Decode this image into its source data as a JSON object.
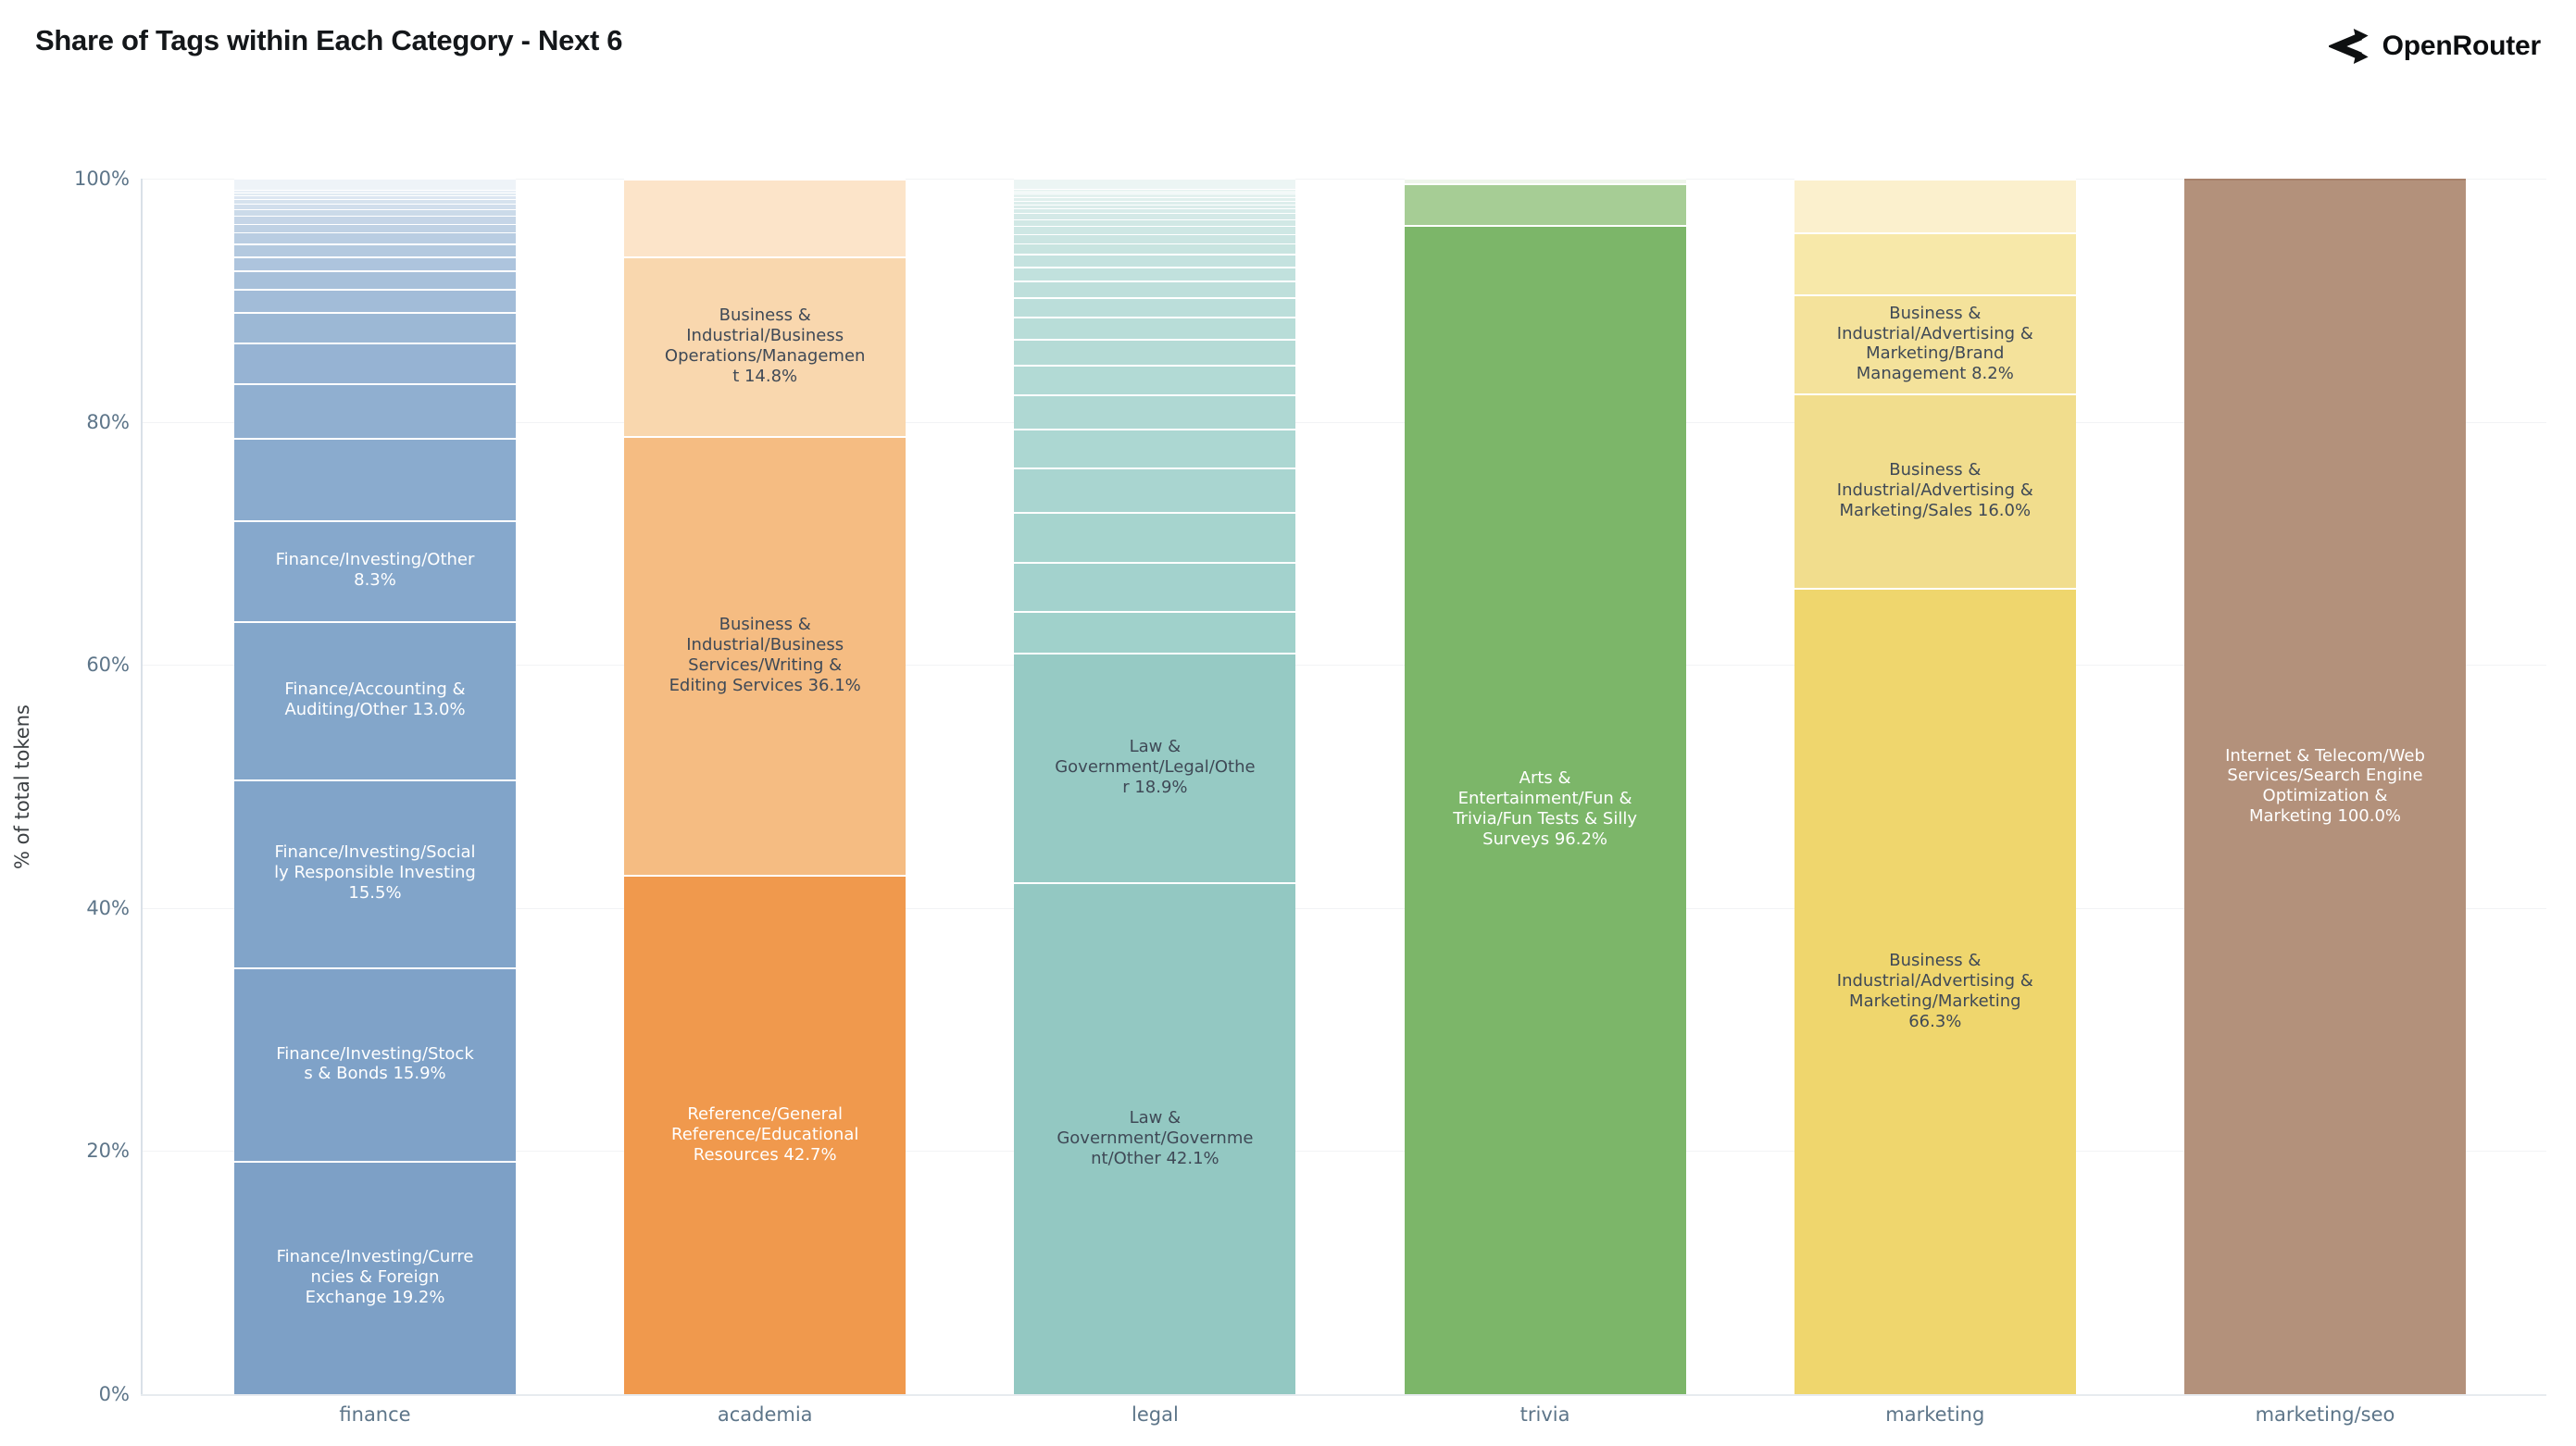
{
  "page": {
    "title": "Share of Tags within Each Category - Next 6",
    "brand": "OpenRouter"
  },
  "axis": {
    "tick_color": "#5d7589",
    "grid_color": "#f2f3f5",
    "spine_color": "#d9e0e8"
  },
  "chart_data": {
    "type": "bar",
    "stacked": true,
    "percent": true,
    "title": "Share of Tags within Each Category - Next 6",
    "xlabel": "",
    "ylabel": "% of total tokens",
    "ylim": [
      0,
      100
    ],
    "ytick_labels": [
      "0%",
      "20%",
      "40%",
      "60%",
      "80%",
      "100%"
    ],
    "grid": true,
    "legend": false,
    "categories": [
      "finance",
      "academia",
      "legal",
      "trivia",
      "marketing",
      "marketing/seo"
    ],
    "bars": [
      {
        "category": "finance",
        "segments": [
          {
            "v": 19.2,
            "color": "#7da0c6",
            "label": "Finance/Investing/Currencies & Foreign Exchange 19.2%",
            "text": "#ffffff"
          },
          {
            "v": 15.9,
            "color": "#7fa2c8",
            "label": "Finance/Investing/Stocks & Bonds 15.9%",
            "text": "#ffffff"
          },
          {
            "v": 15.5,
            "color": "#81a4c9",
            "label": "Finance/Investing/Socially Responsible Investing 15.5%",
            "text": "#ffffff"
          },
          {
            "v": 13.0,
            "color": "#83a6ca",
            "label": "Finance/Accounting & Auditing/Other 13.0%",
            "text": "#ffffff"
          },
          {
            "v": 8.3,
            "color": "#86a8cc",
            "label": "Finance/Investing/Other 8.3%",
            "text": "#ffffff"
          }
        ],
        "minor_segments_top_to_bottom": {
          "values": [
            0.9,
            0.25,
            0.25,
            0.3,
            0.35,
            0.5,
            0.5,
            0.65,
            0.75,
            0.85,
            1.1,
            1.15,
            1.5,
            1.9,
            2.5,
            3.35,
            4.5,
            6.8
          ],
          "color_top": "#eef3f8",
          "color_bottom": "#8aabce"
        }
      },
      {
        "category": "academia",
        "segments": [
          {
            "v": 42.7,
            "color": "#f0994d",
            "label": "Reference/General Reference/Educational Resources 42.7%",
            "text": "#ffffff"
          },
          {
            "v": 36.1,
            "color": "#f5bc82",
            "label": "Business & Industrial/Business Services/Writing & Editing Services 36.1%",
            "text": "#3f4956"
          },
          {
            "v": 14.8,
            "color": "#f9d7ae",
            "label": "Business & Industrial/Business Operations/Management 14.8%",
            "text": "#3f4956"
          },
          {
            "v": 6.4,
            "color": "#fce4c9"
          }
        ]
      },
      {
        "category": "legal",
        "segments": [
          {
            "v": 42.1,
            "color": "#93c8c2",
            "label": "Law & Government/Government/Other 42.1%",
            "text": "#3f4956"
          },
          {
            "v": 18.9,
            "color": "#96cac4",
            "label": "Law & Government/Legal/Other 18.9%",
            "text": "#3f4956"
          }
        ],
        "minor_segments_top_to_bottom": {
          "values": [
            0.85,
            0.2,
            0.2,
            0.25,
            0.3,
            0.3,
            0.35,
            0.4,
            0.5,
            0.55,
            0.65,
            0.75,
            0.9,
            1.0,
            1.2,
            1.35,
            1.6,
            1.85,
            2.1,
            2.45,
            2.8,
            3.2,
            3.7,
            4.05,
            4.1,
            3.4
          ],
          "color_top": "#ecf5f4",
          "color_bottom": "#a0d1cb"
        }
      },
      {
        "category": "trivia",
        "segments": [
          {
            "v": 96.2,
            "color": "#7cb669",
            "label": "Arts & Entertainment/Fun & Trivia/Fun Tests & Silly Surveys 96.2%",
            "text": "#ffffff"
          },
          {
            "v": 3.4,
            "color": "#a6cd95"
          },
          {
            "v": 0.4,
            "color": "#eef5ea"
          }
        ]
      },
      {
        "category": "marketing",
        "segments": [
          {
            "v": 66.3,
            "color": "#efd66d",
            "label": "Business & Industrial/Advertising & Marketing/Marketing 66.3%",
            "text": "#3f4956"
          },
          {
            "v": 16.0,
            "color": "#f1dd8d",
            "label": "Business & Industrial/Advertising & Marketing/Sales 16.0%",
            "text": "#3f4956"
          },
          {
            "v": 8.2,
            "color": "#f4e29b",
            "label": "Business & Industrial/Advertising & Marketing/Brand Management 8.2%",
            "text": "#3f4956"
          },
          {
            "v": 5.1,
            "color": "#f7e8a9"
          },
          {
            "v": 4.4,
            "color": "#fbf0cd"
          }
        ]
      },
      {
        "category": "marketing/seo",
        "segments": [
          {
            "v": 100.0,
            "color": "#b3917b",
            "label": "Internet & Telecom/Web Services/Search Engine Optimization & Marketing 100.0%",
            "text": "#ffffff",
            "top_border": "#a8826c"
          }
        ]
      }
    ]
  }
}
